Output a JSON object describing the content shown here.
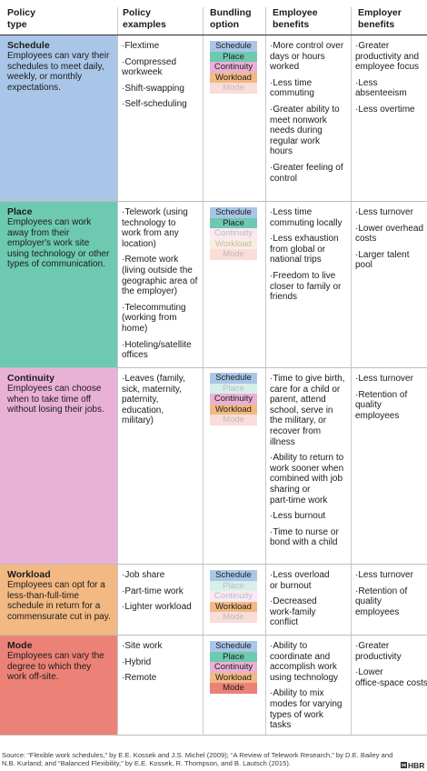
{
  "headers": {
    "type": "Policy\ntype",
    "examples": "Policy\nexamples",
    "bundling": "Bundling\noption",
    "employee": "Employee\nbenefits",
    "employer": "Employer\nbenefits"
  },
  "bundle_labels": [
    "Schedule",
    "Place",
    "Continuity",
    "Workload",
    "Mode"
  ],
  "colors": {
    "schedule": "#a9c6e8",
    "place": "#6dc9b0",
    "continuity": "#e9b1d6",
    "workload": "#f2b983",
    "mode": "#ec8277",
    "text": "#1b1b1b",
    "rule": "#bdbdbd"
  },
  "rows": [
    {
      "key": "schedule",
      "title": "Schedule",
      "description": "Employees can vary their schedules to meet daily, weekly, or monthly expectations.",
      "examples": [
        "Flextime",
        "Compressed\nworkweek",
        "Shift-swapping",
        "Self-scheduling"
      ],
      "active": [
        true,
        true,
        true,
        true,
        false
      ],
      "employee": [
        "More control over\ndays or hours\nworked",
        "Less time\ncommuting",
        "Greater ability to\nmeet nonwork\nneeds during\nregular work\nhours",
        "Greater feeling of\ncontrol"
      ],
      "employer": [
        "Greater\nproductivity and\nemployee focus",
        "Less absenteeism",
        "Less overtime"
      ]
    },
    {
      "key": "place",
      "title": "Place",
      "description": "Employees can work away from their employer's work site using technology or other types of communication.",
      "examples": [
        "Telework (using\ntechnology to\nwork from any\nlocation)",
        "Remote work\n(living outside the\ngeographic area of\nthe employer)",
        "Telecommuting\n(working from\nhome)",
        "Hoteling/satellite\noffices"
      ],
      "active": [
        true,
        true,
        false,
        false,
        false
      ],
      "employee": [
        "Less time\ncommuting locally",
        "Less exhaustion\nfrom global or\nnational trips",
        "Freedom to live\ncloser to family or\nfriends"
      ],
      "employer": [
        "Less turnover",
        "Lower overhead\ncosts",
        "Larger talent pool"
      ]
    },
    {
      "key": "continuity",
      "title": "Continuity",
      "description": "Employees can choose when to take time off without losing their jobs.",
      "examples": [
        "Leaves (family,\nsick, maternity,\npaternity,\neducation,\nmilitary)"
      ],
      "active": [
        true,
        false,
        true,
        true,
        false
      ],
      "employee": [
        "Time to give birth,\ncare for a child or\nparent, attend\nschool, serve in\nthe military, or\nrecover from\nillness",
        "Ability to return to\nwork sooner when\ncombined with job\nsharing or\npart-time work",
        "Less burnout",
        "Time to nurse or\nbond with a child"
      ],
      "employer": [
        "Less turnover",
        "Retention of\nquality employees"
      ]
    },
    {
      "key": "workload",
      "title": "Workload",
      "description": "Employees can opt for a less-than-full-time schedule in return for a commensurate cut in pay.",
      "examples": [
        "Job share",
        "Part-time work",
        "Lighter workload"
      ],
      "active": [
        true,
        false,
        false,
        true,
        false
      ],
      "employee": [
        "Less overload\nor burnout",
        "Decreased\nwork-family\nconflict"
      ],
      "employer": [
        "Less turnover",
        "Retention of\nquality employees"
      ]
    },
    {
      "key": "mode",
      "title": "Mode",
      "description": "Employees can vary the degree to which they work off-site.",
      "examples": [
        "Site work",
        "Hybrid",
        "Remote"
      ],
      "active": [
        true,
        true,
        true,
        true,
        true
      ],
      "employee": [
        "Ability to\ncoordinate and\naccomplish work\nusing technology",
        "Ability to mix\nmodes for varying\ntypes of work\ntasks"
      ],
      "employer": [
        "Greater\nproductivity",
        "Lower\noffice-space costs"
      ]
    }
  ],
  "source": "Source: “Flexible work schedules,” by E.E. Kossek and J.S. Michel (2009); “A Review of Telework Research,” by D.E. Bailey and N.B. Kurland; and “Balanced Flexibility,” by E.E. Kossek, R. Thompson, and B. Lautsch (2015).",
  "brand": "HBR"
}
